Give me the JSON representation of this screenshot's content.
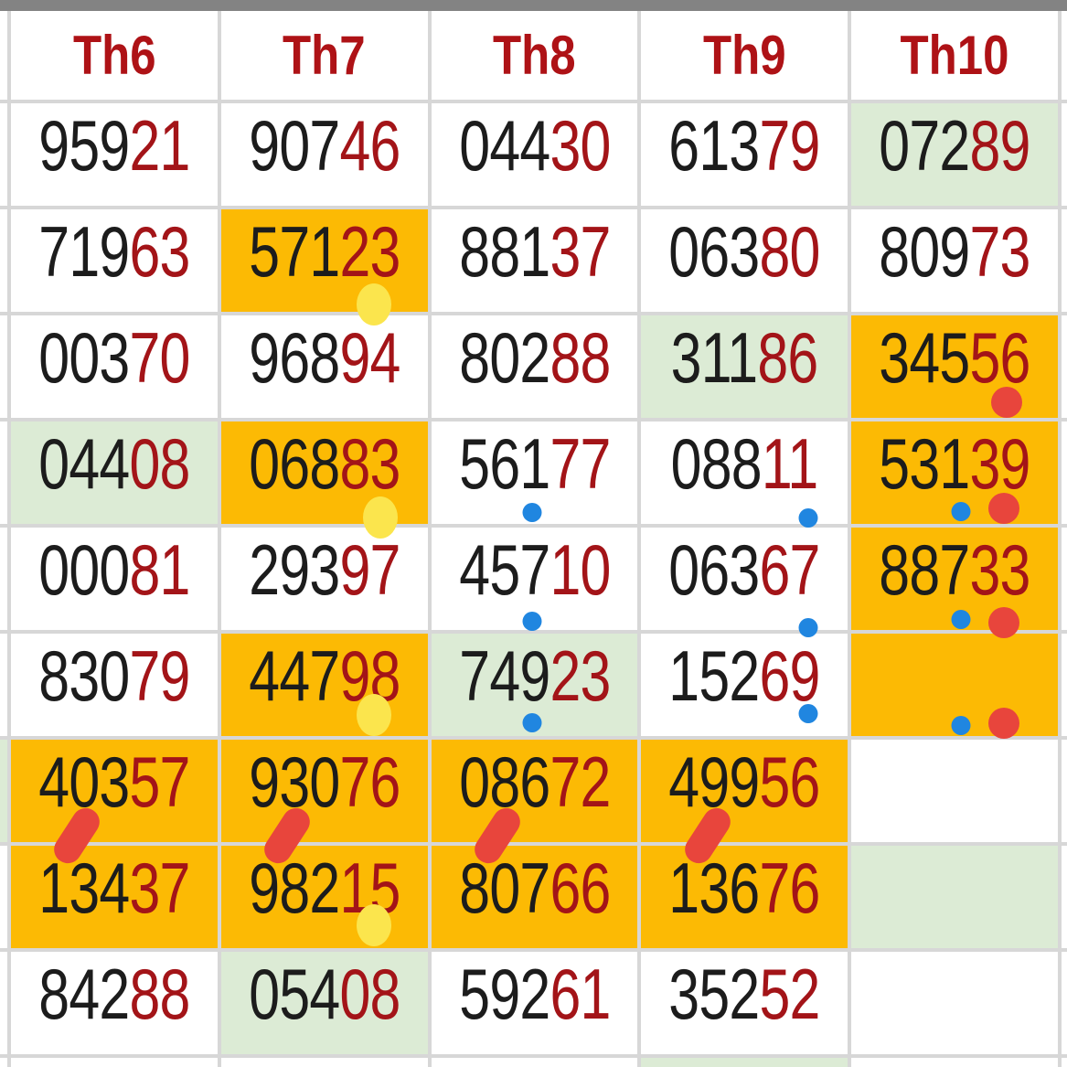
{
  "top_scrollbar": {
    "color": "#838383"
  },
  "colors": {
    "highlight_orange": "#fcba04",
    "highlight_green": "#dcebd5",
    "digit_black": "#1c1c1c",
    "digit_dark_red": "#a31418",
    "header_red": "#ae1216",
    "dot_red": "#e8453c",
    "dot_blue": "#2086e0",
    "dot_yellow": "#fbe54d",
    "grid_line_gray": "#d7d7d7"
  },
  "left_edge": {
    "green_row_index": 6
  },
  "bottom_partial_row": {
    "green_column_index": 3
  },
  "grid": {
    "columns": [
      {
        "label": "Th6"
      },
      {
        "label": "Th7"
      },
      {
        "label": "Th8"
      },
      {
        "label": "Th9"
      },
      {
        "label": "Th10"
      }
    ],
    "rows": [
      {
        "cells": [
          {
            "main": "959",
            "tail": "21",
            "bg": "plain",
            "marks": []
          },
          {
            "main": "907",
            "tail": "46",
            "bg": "plain",
            "marks": []
          },
          {
            "main": "044",
            "tail": "30",
            "bg": "plain",
            "marks": []
          },
          {
            "main": "613",
            "tail": "79",
            "bg": "plain",
            "marks": []
          },
          {
            "main": "072",
            "tail": "89",
            "bg": "green",
            "marks": []
          }
        ]
      },
      {
        "cells": [
          {
            "main": "719",
            "tail": "63",
            "bg": "plain",
            "marks": []
          },
          {
            "main": "571",
            "tail": "23",
            "bg": "orange",
            "marks": [
              {
                "type": "yellow",
                "x": 74,
                "b": -15
              }
            ]
          },
          {
            "main": "881",
            "tail": "37",
            "bg": "plain",
            "marks": []
          },
          {
            "main": "063",
            "tail": "80",
            "bg": "plain",
            "marks": []
          },
          {
            "main": "809",
            "tail": "73",
            "bg": "plain",
            "marks": []
          }
        ]
      },
      {
        "cells": [
          {
            "main": "003",
            "tail": "70",
            "bg": "plain",
            "marks": []
          },
          {
            "main": "968",
            "tail": "94",
            "bg": "plain",
            "marks": []
          },
          {
            "main": "802",
            "tail": "88",
            "bg": "plain",
            "marks": []
          },
          {
            "main": "311",
            "tail": "86",
            "bg": "green",
            "marks": []
          },
          {
            "main": "345",
            "tail": "56",
            "bg": "orange",
            "marks": [
              {
                "type": "red",
                "x": 75,
                "b": 0
              }
            ]
          }
        ]
      },
      {
        "cells": [
          {
            "main": "044",
            "tail": "08",
            "bg": "green",
            "marks": []
          },
          {
            "main": "068",
            "tail": "83",
            "bg": "orange",
            "marks": [
              {
                "type": "yellow",
                "x": 77,
                "b": -16
              }
            ]
          },
          {
            "main": "561",
            "tail": "77",
            "bg": "plain",
            "marks": [
              {
                "type": "blue",
                "x": 49,
                "b": 2
              }
            ]
          },
          {
            "main": "088",
            "tail": "11",
            "bg": "plain",
            "marks": [
              {
                "type": "blue",
                "x": 81,
                "b": -4
              }
            ]
          },
          {
            "main": "531",
            "tail": "39",
            "bg": "orange",
            "marks": [
              {
                "type": "blue",
                "x": 53,
                "b": 3
              },
              {
                "type": "red",
                "x": 74,
                "b": 0
              }
            ]
          }
        ]
      },
      {
        "cells": [
          {
            "main": "000",
            "tail": "81",
            "bg": "plain",
            "marks": []
          },
          {
            "main": "293",
            "tail": "97",
            "bg": "plain",
            "marks": []
          },
          {
            "main": "457",
            "tail": "10",
            "bg": "plain",
            "marks": [
              {
                "type": "blue",
                "x": 49,
                "b": -1
              }
            ]
          },
          {
            "main": "063",
            "tail": "67",
            "bg": "plain",
            "marks": [
              {
                "type": "blue",
                "x": 81,
                "b": -8
              }
            ]
          },
          {
            "main": "887",
            "tail": "33",
            "bg": "orange",
            "marks": [
              {
                "type": "blue",
                "x": 53,
                "b": 1
              },
              {
                "type": "red",
                "x": 74,
                "b": -9
              }
            ]
          }
        ]
      },
      {
        "cells": [
          {
            "main": "830",
            "tail": "79",
            "bg": "plain",
            "marks": []
          },
          {
            "main": "447",
            "tail": "98",
            "bg": "orange",
            "marks": [
              {
                "type": "yellow",
                "x": 74,
                "b": 0
              }
            ]
          },
          {
            "main": "749",
            "tail": "23",
            "bg": "green",
            "marks": [
              {
                "type": "blue",
                "x": 49,
                "b": 4
              }
            ]
          },
          {
            "main": "152",
            "tail": "69",
            "bg": "plain",
            "marks": [
              {
                "type": "blue",
                "x": 81,
                "b": 14
              }
            ]
          },
          {
            "main": "",
            "tail": "",
            "bg": "orange",
            "marks": [
              {
                "type": "blue",
                "x": 53,
                "b": 1
              },
              {
                "type": "red",
                "x": 74,
                "b": -3
              }
            ]
          }
        ]
      },
      {
        "cells": [
          {
            "main": "403",
            "tail": "57",
            "bg": "orange",
            "marks": [
              {
                "type": "slash",
                "x": 32,
                "b": -26
              }
            ]
          },
          {
            "main": "930",
            "tail": "76",
            "bg": "orange",
            "marks": [
              {
                "type": "slash",
                "x": 32,
                "b": -26
              }
            ]
          },
          {
            "main": "086",
            "tail": "72",
            "bg": "orange",
            "marks": [
              {
                "type": "slash",
                "x": 32,
                "b": -26
              }
            ]
          },
          {
            "main": "499",
            "tail": "56",
            "bg": "orange",
            "marks": [
              {
                "type": "slash",
                "x": 32,
                "b": -26
              }
            ]
          },
          {
            "main": "",
            "tail": "",
            "bg": "plain",
            "marks": []
          }
        ]
      },
      {
        "cells": [
          {
            "main": "134",
            "tail": "37",
            "bg": "orange",
            "marks": []
          },
          {
            "main": "982",
            "tail": "15",
            "bg": "orange",
            "marks": [
              {
                "type": "yellow",
                "x": 74,
                "b": 2
              }
            ]
          },
          {
            "main": "807",
            "tail": "66",
            "bg": "orange",
            "marks": []
          },
          {
            "main": "136",
            "tail": "76",
            "bg": "orange",
            "marks": []
          },
          {
            "main": "",
            "tail": "",
            "bg": "green",
            "marks": []
          }
        ]
      },
      {
        "cells": [
          {
            "main": "842",
            "tail": "88",
            "bg": "plain",
            "marks": []
          },
          {
            "main": "054",
            "tail": "08",
            "bg": "green",
            "marks": []
          },
          {
            "main": "592",
            "tail": "61",
            "bg": "plain",
            "marks": []
          },
          {
            "main": "352",
            "tail": "52",
            "bg": "plain",
            "marks": []
          },
          {
            "main": "",
            "tail": "",
            "bg": "plain",
            "marks": []
          }
        ]
      }
    ]
  }
}
